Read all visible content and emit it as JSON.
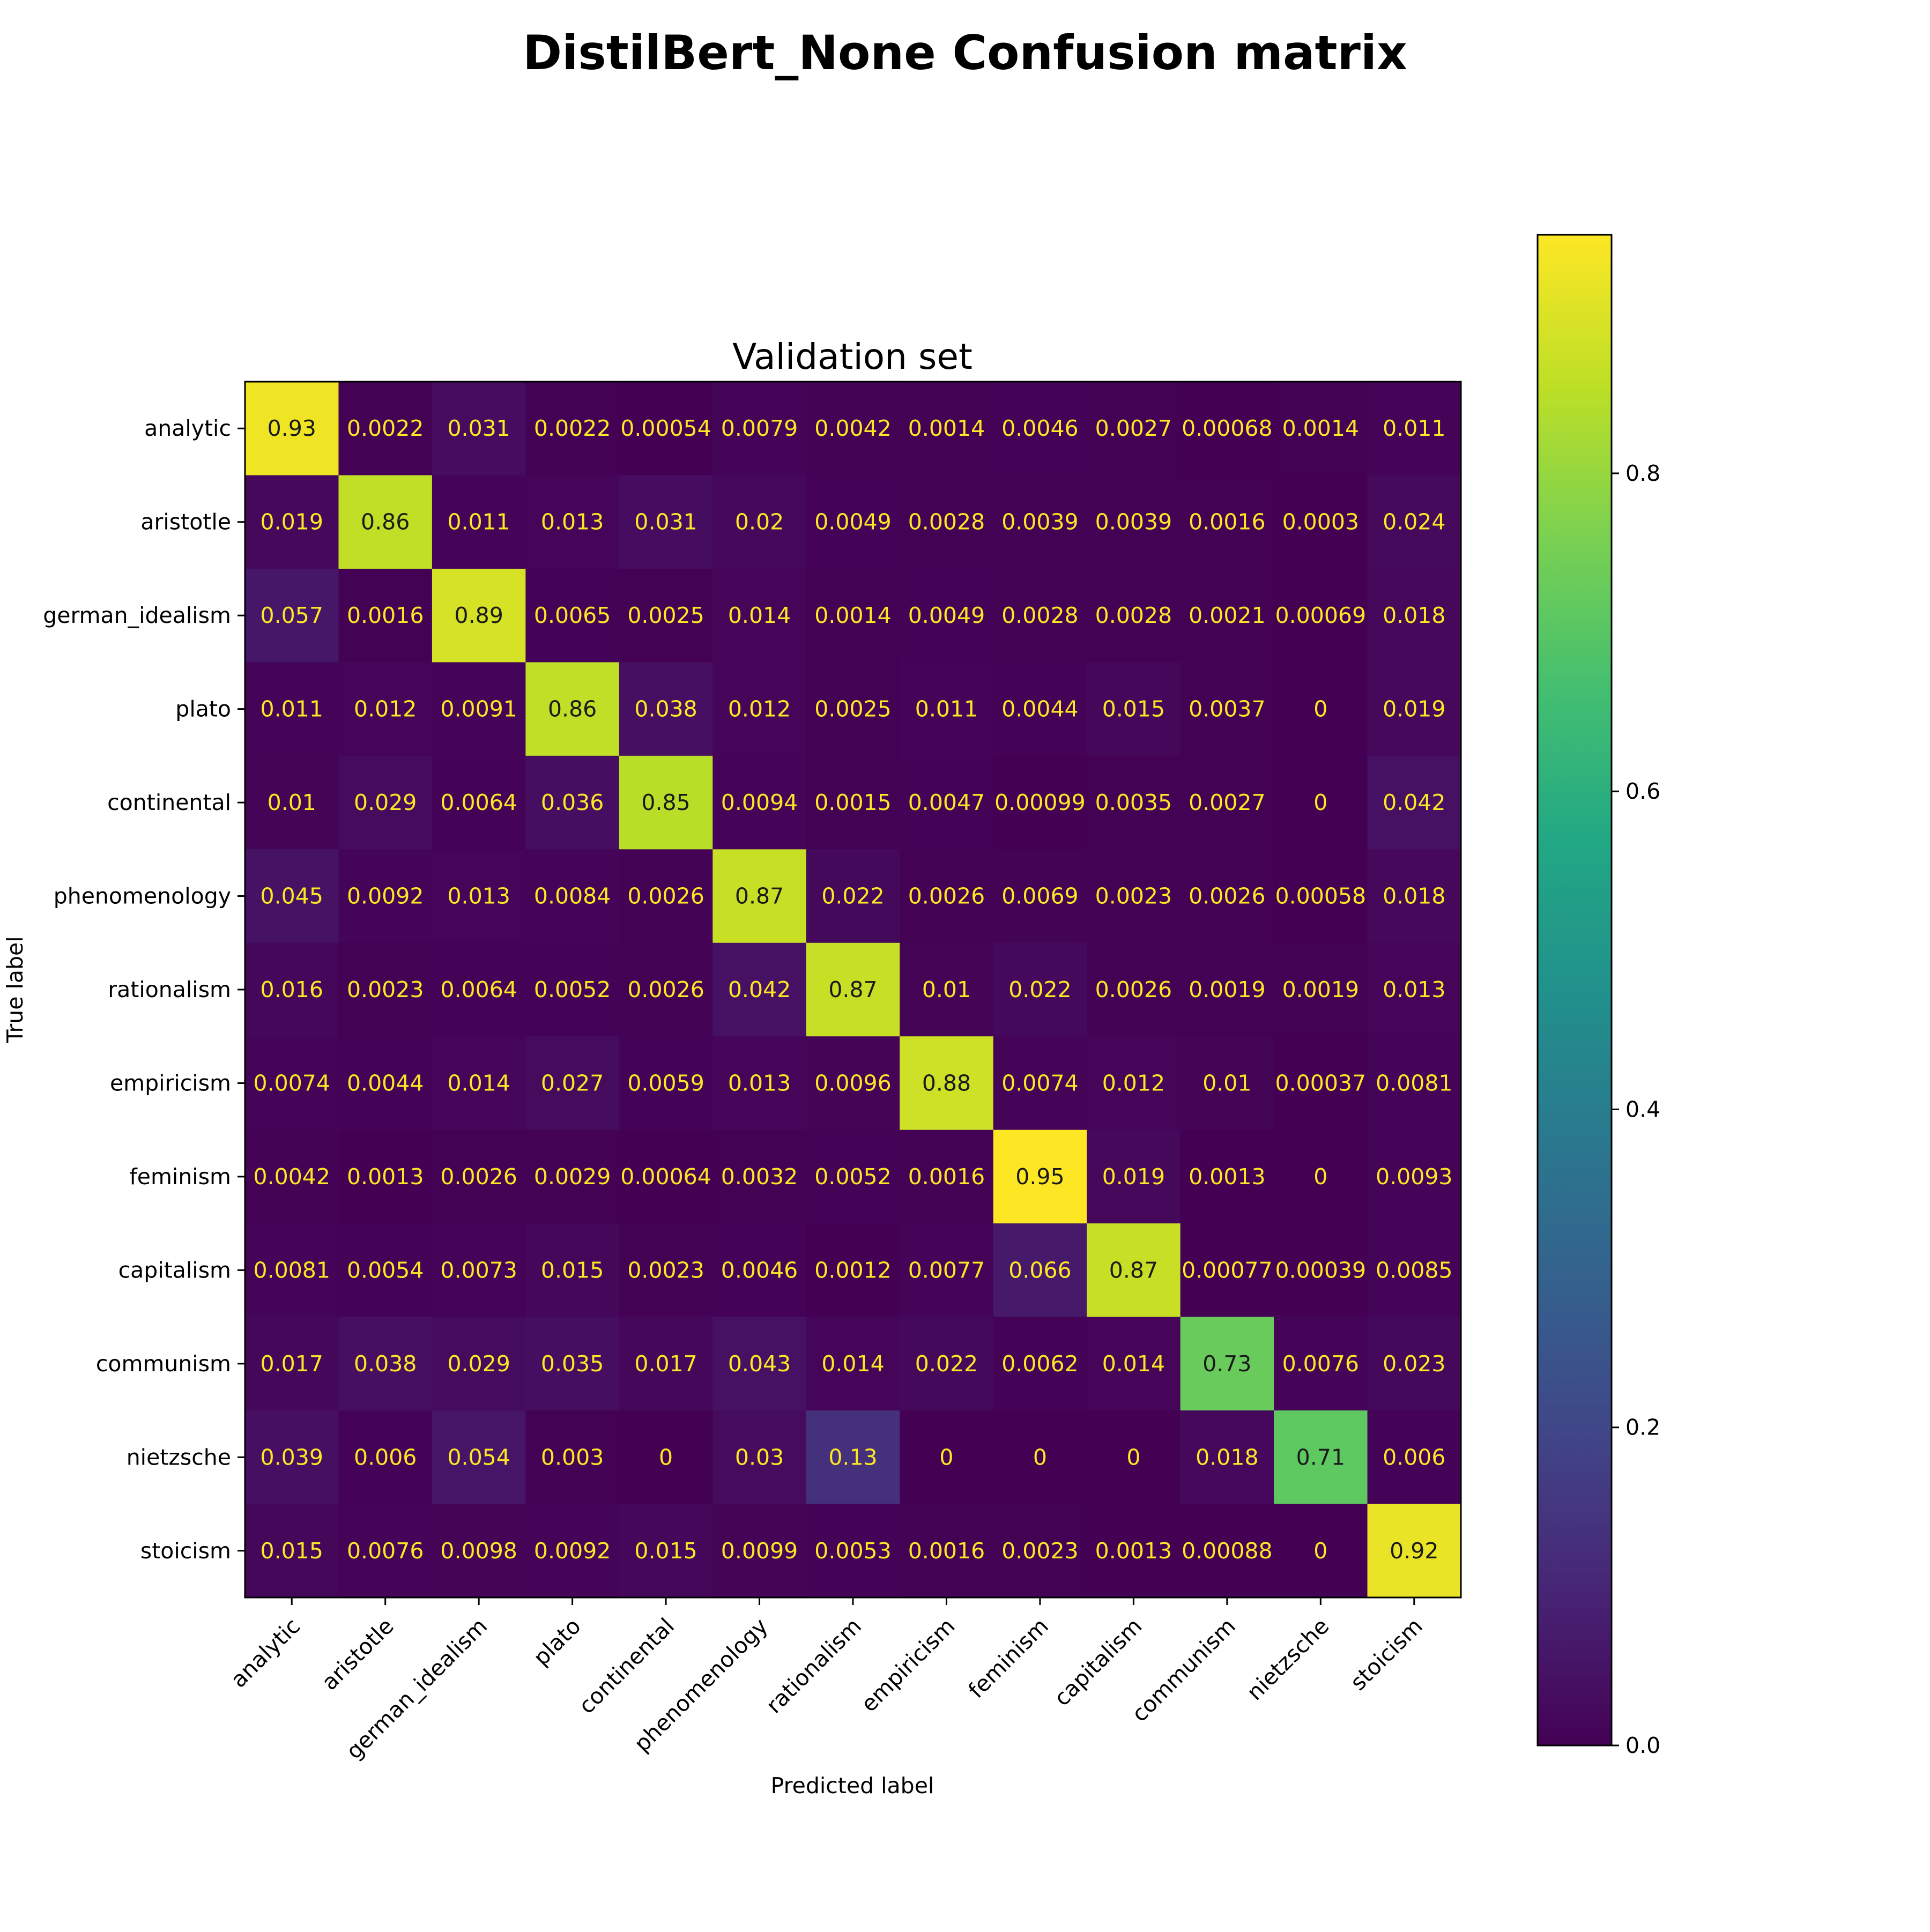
{
  "figure": {
    "suptitle": "DistilBert_None Confusion matrix"
  },
  "chart_data": {
    "type": "heatmap",
    "title": "Validation set",
    "xlabel": "Predicted label",
    "ylabel": "True label",
    "colormap": "viridis",
    "x_categories": [
      "analytic",
      "aristotle",
      "german_idealism",
      "plato",
      "continental",
      "phenomenology",
      "rationalism",
      "empiricism",
      "feminism",
      "capitalism",
      "communism",
      "nietzsche",
      "stoicism"
    ],
    "y_categories": [
      "analytic",
      "aristotle",
      "german_idealism",
      "plato",
      "continental",
      "phenomenology",
      "rationalism",
      "empiricism",
      "feminism",
      "capitalism",
      "communism",
      "nietzsche",
      "stoicism"
    ],
    "values": [
      [
        0.93,
        0.0022,
        0.031,
        0.0022,
        0.00054,
        0.0079,
        0.0042,
        0.0014,
        0.0046,
        0.0027,
        0.00068,
        0.0014,
        0.011
      ],
      [
        0.019,
        0.86,
        0.011,
        0.013,
        0.031,
        0.02,
        0.0049,
        0.0028,
        0.0039,
        0.0039,
        0.0016,
        0.0003,
        0.024
      ],
      [
        0.057,
        0.0016,
        0.89,
        0.0065,
        0.0025,
        0.014,
        0.0014,
        0.0049,
        0.0028,
        0.0028,
        0.0021,
        0.00069,
        0.018
      ],
      [
        0.011,
        0.012,
        0.0091,
        0.86,
        0.038,
        0.012,
        0.0025,
        0.011,
        0.0044,
        0.015,
        0.0037,
        0,
        0.019
      ],
      [
        0.01,
        0.029,
        0.0064,
        0.036,
        0.85,
        0.0094,
        0.0015,
        0.0047,
        0.00099,
        0.0035,
        0.0027,
        0,
        0.042
      ],
      [
        0.045,
        0.0092,
        0.013,
        0.0084,
        0.0026,
        0.87,
        0.022,
        0.0026,
        0.0069,
        0.0023,
        0.0026,
        0.00058,
        0.018
      ],
      [
        0.016,
        0.0023,
        0.0064,
        0.0052,
        0.0026,
        0.042,
        0.87,
        0.01,
        0.022,
        0.0026,
        0.0019,
        0.0019,
        0.013
      ],
      [
        0.0074,
        0.0044,
        0.014,
        0.027,
        0.0059,
        0.013,
        0.0096,
        0.88,
        0.0074,
        0.012,
        0.01,
        0.00037,
        0.0081
      ],
      [
        0.0042,
        0.0013,
        0.0026,
        0.0029,
        0.00064,
        0.0032,
        0.0052,
        0.0016,
        0.95,
        0.019,
        0.0013,
        0,
        0.0093
      ],
      [
        0.0081,
        0.0054,
        0.0073,
        0.015,
        0.0023,
        0.0046,
        0.0012,
        0.0077,
        0.066,
        0.87,
        0.00077,
        0.00039,
        0.0085
      ],
      [
        0.017,
        0.038,
        0.029,
        0.035,
        0.017,
        0.043,
        0.014,
        0.022,
        0.0062,
        0.014,
        0.73,
        0.0076,
        0.023
      ],
      [
        0.039,
        0.006,
        0.054,
        0.003,
        0,
        0.03,
        0.13,
        0,
        0,
        0,
        0.018,
        0.71,
        0.006
      ],
      [
        0.015,
        0.0076,
        0.0098,
        0.0092,
        0.015,
        0.0099,
        0.0053,
        0.0016,
        0.0023,
        0.0013,
        0.00088,
        0,
        0.92
      ]
    ],
    "value_labels": [
      [
        "0.93",
        "0.0022",
        "0.031",
        "0.0022",
        "0.00054",
        "0.0079",
        "0.0042",
        "0.0014",
        "0.0046",
        "0.0027",
        "0.00068",
        "0.0014",
        "0.011"
      ],
      [
        "0.019",
        "0.86",
        "0.011",
        "0.013",
        "0.031",
        "0.02",
        "0.0049",
        "0.0028",
        "0.0039",
        "0.0039",
        "0.0016",
        "0.0003",
        "0.024"
      ],
      [
        "0.057",
        "0.0016",
        "0.89",
        "0.0065",
        "0.0025",
        "0.014",
        "0.0014",
        "0.0049",
        "0.0028",
        "0.0028",
        "0.0021",
        "0.00069",
        "0.018"
      ],
      [
        "0.011",
        "0.012",
        "0.0091",
        "0.86",
        "0.038",
        "0.012",
        "0.0025",
        "0.011",
        "0.0044",
        "0.015",
        "0.0037",
        "0",
        "0.019"
      ],
      [
        "0.01",
        "0.029",
        "0.0064",
        "0.036",
        "0.85",
        "0.0094",
        "0.0015",
        "0.0047",
        "0.00099",
        "0.0035",
        "0.0027",
        "0",
        "0.042"
      ],
      [
        "0.045",
        "0.0092",
        "0.013",
        "0.0084",
        "0.0026",
        "0.87",
        "0.022",
        "0.0026",
        "0.0069",
        "0.0023",
        "0.0026",
        "0.00058",
        "0.018"
      ],
      [
        "0.016",
        "0.0023",
        "0.0064",
        "0.0052",
        "0.0026",
        "0.042",
        "0.87",
        "0.01",
        "0.022",
        "0.0026",
        "0.0019",
        "0.0019",
        "0.013"
      ],
      [
        "0.0074",
        "0.0044",
        "0.014",
        "0.027",
        "0.0059",
        "0.013",
        "0.0096",
        "0.88",
        "0.0074",
        "0.012",
        "0.01",
        "0.00037",
        "0.0081"
      ],
      [
        "0.0042",
        "0.0013",
        "0.0026",
        "0.0029",
        "0.00064",
        "0.0032",
        "0.0052",
        "0.0016",
        "0.95",
        "0.019",
        "0.0013",
        "0",
        "0.0093"
      ],
      [
        "0.0081",
        "0.0054",
        "0.0073",
        "0.015",
        "0.0023",
        "0.0046",
        "0.0012",
        "0.0077",
        "0.066",
        "0.87",
        "0.00077",
        "0.00039",
        "0.0085"
      ],
      [
        "0.017",
        "0.038",
        "0.029",
        "0.035",
        "0.017",
        "0.043",
        "0.014",
        "0.022",
        "0.0062",
        "0.014",
        "0.73",
        "0.0076",
        "0.023"
      ],
      [
        "0.039",
        "0.006",
        "0.054",
        "0.003",
        "0",
        "0.03",
        "0.13",
        "0",
        "0",
        "0",
        "0.018",
        "0.71",
        "0.006"
      ],
      [
        "0.015",
        "0.0076",
        "0.0098",
        "0.0092",
        "0.015",
        "0.0099",
        "0.0053",
        "0.0016",
        "0.0023",
        "0.0013",
        "0.00088",
        "0",
        "0.92"
      ]
    ],
    "colorbar": {
      "range": [
        0,
        0.95
      ],
      "ticks": [
        0.0,
        0.2,
        0.4,
        0.6,
        0.8
      ],
      "tick_labels": [
        "0.0",
        "0.2",
        "0.4",
        "0.6",
        "0.8"
      ]
    },
    "text_colors": {
      "light": "#fde725",
      "dark": "#1a1a1a"
    },
    "grid": false
  }
}
